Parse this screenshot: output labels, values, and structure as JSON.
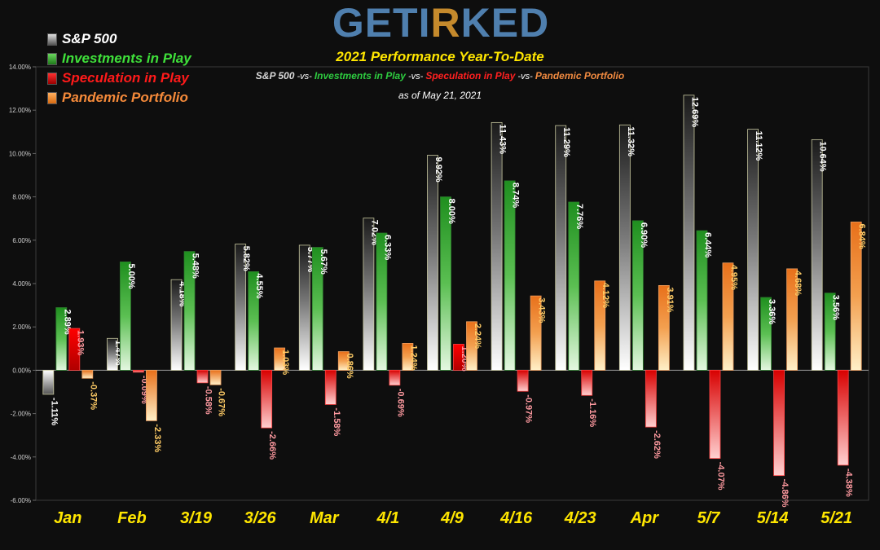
{
  "header": {
    "logo_part1": "GETI",
    "logo_part2": "R",
    "logo_part3": "KED",
    "title": "2021 Performance Year-To-Date",
    "subtitle": {
      "s1": "S&P 500",
      "vs1": " -vs- ",
      "s2": "Investments in Play",
      "vs2": " -vs- ",
      "s3": "Speculation in Play",
      "vs3": " -vs- ",
      "s4": "Pandemic Portfolio"
    },
    "as_of": "as of May 21, 2021"
  },
  "colors": {
    "sp500": "#9a9a9a",
    "investments": "#3fae3a",
    "speculation": "#e00000",
    "pandemic": "#ef8a35",
    "subtitle_sp": "#d9d9d9",
    "subtitle_inv": "#2ecc40",
    "subtitle_spec": "#ff2020",
    "subtitle_pan": "#f08a40",
    "axis_label": "#ffe600"
  },
  "chart_data": {
    "type": "bar",
    "title": "2021 Performance Year-To-Date",
    "xlabel": "",
    "ylabel": "",
    "ylim": [
      -6,
      14
    ],
    "grid": false,
    "legend_placement": "top-left",
    "y_ticks": [
      "14.00%",
      "12.00%",
      "10.00%",
      "8.00%",
      "6.00%",
      "4.00%",
      "2.00%",
      "0.00%",
      "-2.00%",
      "-4.00%",
      "-6.00%"
    ],
    "categories": [
      "Jan",
      "Feb",
      "3/19",
      "3/26",
      "Mar",
      "4/1",
      "4/9",
      "4/16",
      "4/23",
      "Apr",
      "5/7",
      "5/14",
      "5/21"
    ],
    "series": [
      {
        "name": "S&P 500",
        "values": [
          -1.11,
          1.47,
          4.18,
          5.82,
          5.77,
          7.02,
          9.92,
          11.43,
          11.29,
          11.32,
          12.69,
          11.12,
          10.64
        ],
        "labels": [
          "-1.11%",
          "1.47%",
          "4.18%",
          "5.82%",
          "5.77%",
          "7.02%",
          "9.92%",
          "11.43%",
          "11.29%",
          "11.32%",
          "12.69%",
          "11.12%",
          "10.64%"
        ]
      },
      {
        "name": "Investments in Play",
        "values": [
          2.89,
          5.0,
          5.48,
          4.55,
          5.67,
          6.33,
          8.0,
          8.74,
          7.76,
          6.9,
          6.44,
          3.36,
          3.56
        ],
        "labels": [
          "2.89%",
          "5.00%",
          "5.48%",
          "4.55%",
          "5.67%",
          "6.33%",
          "8.00%",
          "8.74%",
          "7.76%",
          "6.90%",
          "6.44%",
          "3.36%",
          "3.56%"
        ]
      },
      {
        "name": "Speculation in Play",
        "values": [
          1.93,
          -0.09,
          -0.58,
          -2.66,
          -1.58,
          -0.69,
          1.2,
          -0.97,
          -1.16,
          -2.62,
          -4.07,
          -4.86,
          -4.38
        ],
        "labels": [
          "1.93%",
          "-0.09%",
          "-0.58%",
          "-2.66%",
          "-1.58%",
          "-0.69%",
          "1.20%",
          "-0.97%",
          "-1.16%",
          "-2.62%",
          "-4.07%",
          "-4.86%",
          "-4.38%"
        ]
      },
      {
        "name": "Pandemic Portfolio",
        "values": [
          -0.37,
          -2.33,
          -0.67,
          1.03,
          0.86,
          1.24,
          2.24,
          3.43,
          4.12,
          3.91,
          4.95,
          4.68,
          6.84
        ],
        "labels": [
          "-0.37%",
          "-2.33%",
          "-0.67%",
          "1.03%",
          "0.86%",
          "1.24%",
          "2.24%",
          "3.43%",
          "4.12%",
          "3.91%",
          "4.95%",
          "4.68%",
          "6.84%"
        ]
      }
    ]
  }
}
